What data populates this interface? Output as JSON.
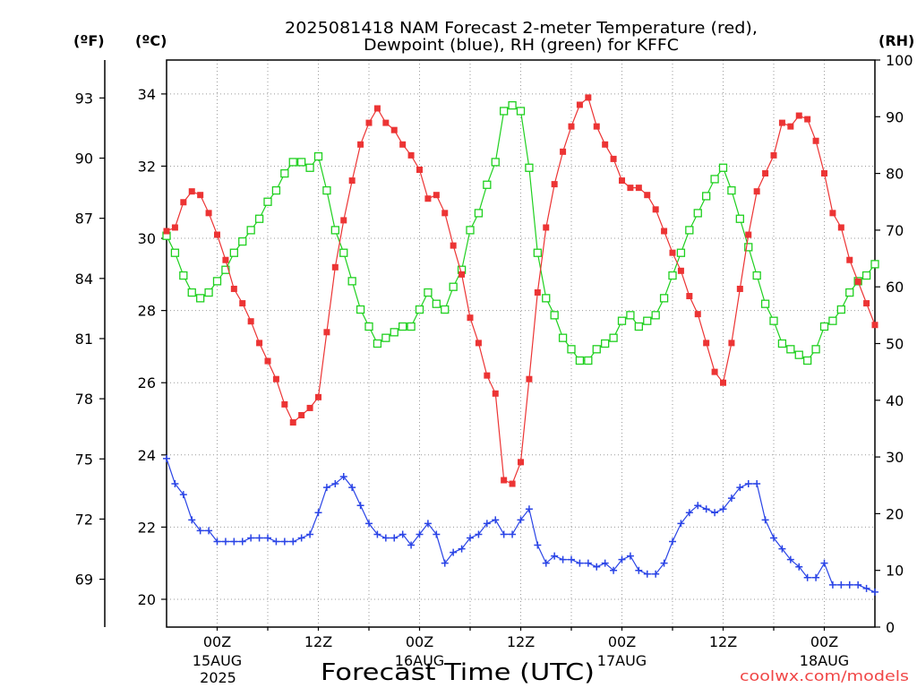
{
  "chart_data": {
    "type": "line",
    "title_lines": [
      "2025081418 NAM Forecast 2-meter Temperature (red),",
      "Dewpoint (blue), RH (green) for KFFC"
    ],
    "xlabel": "Forecast Time (UTC)",
    "ylabel": "(ºC)",
    "ylabel_f": "(ºF)",
    "y2label": "(RH)",
    "xlim": [
      "2025-08-14 18Z",
      "2025-08-18 06Z"
    ],
    "x_ticks": [
      {
        "time": "2025-08-15 00Z",
        "label": "00Z",
        "date": "15AUG",
        "year": "2025"
      },
      {
        "time": "2025-08-15 12Z",
        "label": "12Z"
      },
      {
        "time": "2025-08-16 00Z",
        "label": "00Z",
        "date": "16AUG"
      },
      {
        "time": "2025-08-16 12Z",
        "label": "12Z"
      },
      {
        "time": "2025-08-17 00Z",
        "label": "00Z",
        "date": "17AUG"
      },
      {
        "time": "2025-08-17 12Z",
        "label": "12Z"
      },
      {
        "time": "2025-08-18 00Z",
        "label": "00Z",
        "date": "18AUG"
      }
    ],
    "ylim": [
      19.23,
      34.94
    ],
    "y_ticks": [
      20,
      22,
      24,
      26,
      28,
      30,
      32,
      34
    ],
    "y_f_ticks": [
      69,
      72,
      75,
      78,
      81,
      84,
      87,
      90,
      93
    ],
    "y2lim": [
      0,
      100
    ],
    "y2_ticks": [
      0,
      10,
      20,
      30,
      40,
      50,
      60,
      70,
      80,
      90,
      100
    ],
    "grid": true,
    "x": [
      "2025-08-14 18Z",
      "2025-08-14 19Z",
      "2025-08-14 20Z",
      "2025-08-14 21Z",
      "2025-08-14 22Z",
      "2025-08-14 23Z",
      "2025-08-15 00Z",
      "2025-08-15 01Z",
      "2025-08-15 02Z",
      "2025-08-15 03Z",
      "2025-08-15 04Z",
      "2025-08-15 05Z",
      "2025-08-15 06Z",
      "2025-08-15 07Z",
      "2025-08-15 08Z",
      "2025-08-15 09Z",
      "2025-08-15 10Z",
      "2025-08-15 11Z",
      "2025-08-15 12Z",
      "2025-08-15 13Z",
      "2025-08-15 14Z",
      "2025-08-15 15Z",
      "2025-08-15 16Z",
      "2025-08-15 17Z",
      "2025-08-15 18Z",
      "2025-08-15 19Z",
      "2025-08-15 20Z",
      "2025-08-15 21Z",
      "2025-08-15 22Z",
      "2025-08-15 23Z",
      "2025-08-16 00Z",
      "2025-08-16 01Z",
      "2025-08-16 02Z",
      "2025-08-16 03Z",
      "2025-08-16 04Z",
      "2025-08-16 05Z",
      "2025-08-16 06Z",
      "2025-08-16 07Z",
      "2025-08-16 08Z",
      "2025-08-16 09Z",
      "2025-08-16 10Z",
      "2025-08-16 11Z",
      "2025-08-16 12Z",
      "2025-08-16 13Z",
      "2025-08-16 14Z",
      "2025-08-16 15Z",
      "2025-08-16 16Z",
      "2025-08-16 17Z",
      "2025-08-16 18Z",
      "2025-08-16 19Z",
      "2025-08-16 20Z",
      "2025-08-16 21Z",
      "2025-08-16 22Z",
      "2025-08-16 23Z",
      "2025-08-17 00Z",
      "2025-08-17 01Z",
      "2025-08-17 02Z",
      "2025-08-17 03Z",
      "2025-08-17 04Z",
      "2025-08-17 05Z",
      "2025-08-17 06Z",
      "2025-08-17 07Z",
      "2025-08-17 08Z",
      "2025-08-17 09Z",
      "2025-08-17 10Z",
      "2025-08-17 11Z",
      "2025-08-17 12Z",
      "2025-08-17 13Z",
      "2025-08-17 14Z",
      "2025-08-17 15Z",
      "2025-08-17 16Z",
      "2025-08-17 17Z",
      "2025-08-17 18Z",
      "2025-08-17 19Z",
      "2025-08-17 20Z",
      "2025-08-17 21Z",
      "2025-08-17 22Z",
      "2025-08-17 23Z",
      "2025-08-18 00Z",
      "2025-08-18 01Z",
      "2025-08-18 02Z",
      "2025-08-18 03Z",
      "2025-08-18 04Z",
      "2025-08-18 05Z",
      "2025-08-18 06Z"
    ],
    "series": [
      {
        "name": "RH",
        "y_axis": "right",
        "color": "#1fd01f",
        "marker": "open-square",
        "values": [
          69,
          66,
          62,
          59,
          58,
          59,
          61,
          63,
          66,
          68,
          70,
          72,
          75,
          77,
          80,
          82,
          82,
          81,
          83,
          77,
          70,
          66,
          61,
          56,
          53,
          50,
          51,
          52,
          53,
          53,
          56,
          59,
          57,
          56,
          60,
          63,
          70,
          73,
          78,
          82,
          91,
          92,
          91,
          81,
          66,
          58,
          55,
          51,
          49,
          47,
          47,
          49,
          50,
          51,
          54,
          55,
          53,
          54,
          55,
          58,
          62,
          66,
          70,
          73,
          76,
          79,
          81,
          77,
          72,
          67,
          62,
          57,
          54,
          50,
          49,
          48,
          47,
          49,
          53,
          54,
          56,
          59,
          61,
          62,
          64
        ]
      },
      {
        "name": "2-meter Temperature",
        "y_axis": "left",
        "color": "#ec3434",
        "marker": "filled-square",
        "values": [
          30.2,
          30.3,
          31.0,
          31.3,
          31.2,
          30.7,
          30.1,
          29.4,
          28.6,
          28.2,
          27.7,
          27.1,
          26.6,
          26.1,
          25.4,
          24.9,
          25.1,
          25.3,
          25.6,
          27.4,
          29.2,
          30.5,
          31.6,
          32.6,
          33.2,
          33.6,
          33.2,
          33.0,
          32.6,
          32.3,
          31.9,
          31.1,
          31.2,
          30.7,
          29.8,
          29.0,
          27.8,
          27.1,
          26.2,
          25.7,
          23.3,
          23.2,
          23.8,
          26.1,
          28.5,
          30.3,
          31.5,
          32.4,
          33.1,
          33.7,
          33.9,
          33.1,
          32.6,
          32.2,
          31.6,
          31.4,
          31.4,
          31.2,
          30.8,
          30.2,
          29.6,
          29.1,
          28.4,
          27.9,
          27.1,
          26.3,
          26.0,
          27.1,
          28.6,
          30.1,
          31.3,
          31.8,
          32.3,
          33.2,
          33.1,
          33.4,
          33.3,
          32.7,
          31.8,
          30.7,
          30.3,
          29.4,
          28.8,
          28.2,
          27.6
        ]
      },
      {
        "name": "Dewpoint",
        "y_axis": "left",
        "color": "#2a44e6",
        "marker": "plus",
        "values": [
          23.9,
          23.2,
          22.9,
          22.2,
          21.9,
          21.9,
          21.6,
          21.6,
          21.6,
          21.6,
          21.7,
          21.7,
          21.7,
          21.6,
          21.6,
          21.6,
          21.7,
          21.8,
          22.4,
          23.1,
          23.2,
          23.4,
          23.1,
          22.6,
          22.1,
          21.8,
          21.7,
          21.7,
          21.8,
          21.5,
          21.8,
          22.1,
          21.8,
          21.0,
          21.3,
          21.4,
          21.7,
          21.8,
          22.1,
          22.2,
          21.8,
          21.8,
          22.2,
          22.5,
          21.5,
          21.0,
          21.2,
          21.1,
          21.1,
          21.0,
          21.0,
          20.9,
          21.0,
          20.8,
          21.1,
          21.2,
          20.8,
          20.7,
          20.7,
          21.0,
          21.6,
          22.1,
          22.4,
          22.6,
          22.5,
          22.4,
          22.5,
          22.8,
          23.1,
          23.2,
          23.2,
          22.2,
          21.7,
          21.4,
          21.1,
          20.9,
          20.6,
          20.6,
          21.0,
          20.4,
          20.4,
          20.4,
          20.4,
          20.3,
          20.2
        ]
      }
    ]
  },
  "footer": {
    "credit": "coolwx.com/models",
    "credit_color": "#f04646"
  }
}
